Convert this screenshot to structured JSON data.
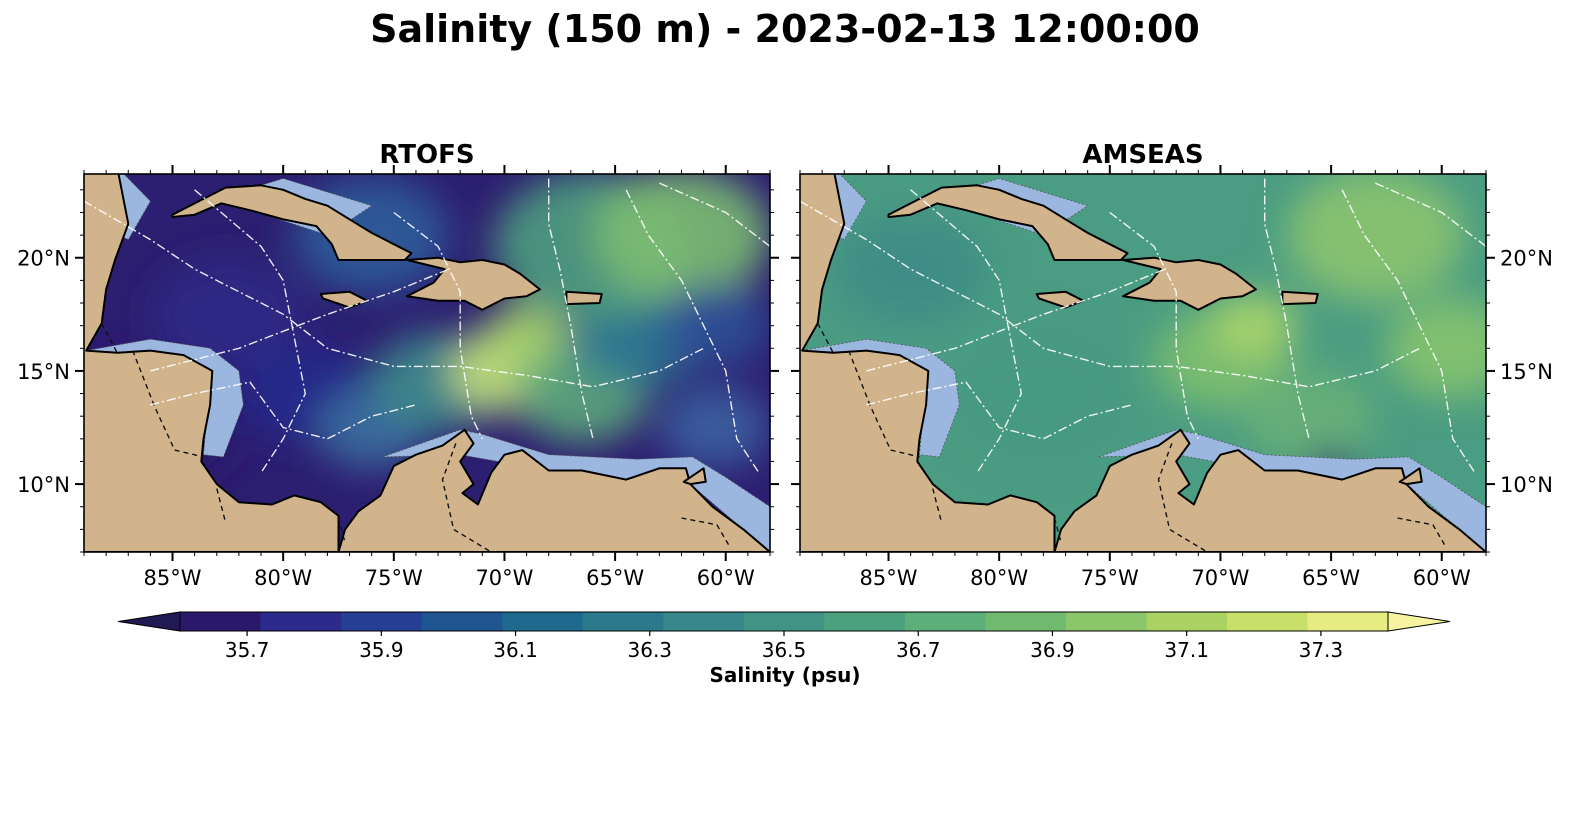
{
  "title": "Salinity (150 m) - 2023-02-13 12:00:00",
  "panels": [
    {
      "name": "RTOFS",
      "title": "RTOFS",
      "base": "#2c1e70",
      "patches": [
        {
          "lon": -86.5,
          "lat": 12.5,
          "r": 4.5,
          "color": "#2a186b"
        },
        {
          "lon": -82.5,
          "lat": 17.5,
          "r": 3.5,
          "color": "#2d2a85"
        },
        {
          "lon": -79.0,
          "lat": 14.0,
          "r": 3.0,
          "color": "#262a8c"
        },
        {
          "lon": -76.0,
          "lat": 12.5,
          "r": 2.5,
          "color": "#3b6fa0"
        },
        {
          "lon": -76.0,
          "lat": 21.0,
          "r": 3.5,
          "color": "#2f5c9a"
        },
        {
          "lon": -73.0,
          "lat": 14.5,
          "r": 3.0,
          "color": "#3d8c8c"
        },
        {
          "lon": -70.0,
          "lat": 15.0,
          "r": 2.5,
          "color": "#c8e07a"
        },
        {
          "lon": -69.0,
          "lat": 16.5,
          "r": 2.0,
          "color": "#a6d36c"
        },
        {
          "lon": -66.5,
          "lat": 14.0,
          "r": 3.0,
          "color": "#5ca87c"
        },
        {
          "lon": -64.0,
          "lat": 16.5,
          "r": 3.0,
          "color": "#2f7a92"
        },
        {
          "lon": -66.0,
          "lat": 20.5,
          "r": 4.5,
          "color": "#4e9e80"
        },
        {
          "lon": -62.0,
          "lat": 21.0,
          "r": 4.0,
          "color": "#7cbd72"
        },
        {
          "lon": -60.5,
          "lat": 17.0,
          "r": 2.5,
          "color": "#2f4f96"
        },
        {
          "lon": -60.5,
          "lat": 12.5,
          "r": 2.5,
          "color": "#3a5fa0"
        }
      ]
    },
    {
      "name": "AMSEAS",
      "title": "AMSEAS",
      "base": "#4a9c82",
      "patches": [
        {
          "lon": -84.0,
          "lat": 19.5,
          "r": 3.5,
          "color": "#3d8c86"
        },
        {
          "lon": -78.0,
          "lat": 14.0,
          "r": 4.0,
          "color": "#459a80"
        },
        {
          "lon": -70.0,
          "lat": 15.5,
          "r": 3.0,
          "color": "#7dbf6e"
        },
        {
          "lon": -68.5,
          "lat": 17.0,
          "r": 2.0,
          "color": "#a8d46a"
        },
        {
          "lon": -66.0,
          "lat": 13.0,
          "r": 3.0,
          "color": "#68b078"
        },
        {
          "lon": -63.0,
          "lat": 21.0,
          "r": 4.0,
          "color": "#8cc470"
        },
        {
          "lon": -59.5,
          "lat": 16.0,
          "r": 3.0,
          "color": "#86c36f"
        },
        {
          "lon": -65.0,
          "lat": 10.7,
          "r": 1.1,
          "color": "#2c2576"
        }
      ]
    }
  ],
  "axes": {
    "lon_range": [
      -89,
      -58
    ],
    "lat_range": [
      7,
      23.7
    ],
    "lon_ticks": [
      {
        "value": -85,
        "label": "85°W"
      },
      {
        "value": -80,
        "label": "80°W"
      },
      {
        "value": -75,
        "label": "75°W"
      },
      {
        "value": -70,
        "label": "70°W"
      },
      {
        "value": -65,
        "label": "65°W"
      },
      {
        "value": -60,
        "label": "60°W"
      }
    ],
    "lat_ticks": [
      {
        "value": 20,
        "label": "20°N"
      },
      {
        "value": 15,
        "label": "15°N"
      },
      {
        "value": 10,
        "label": "10°N"
      }
    ]
  },
  "colorbar": {
    "label": "Salinity (psu)",
    "min": 35.6,
    "max": 37.4,
    "ticks": [
      {
        "value": 35.7,
        "label": "35.7"
      },
      {
        "value": 35.9,
        "label": "35.9"
      },
      {
        "value": 36.1,
        "label": "36.1"
      },
      {
        "value": 36.3,
        "label": "36.3"
      },
      {
        "value": 36.5,
        "label": "36.5"
      },
      {
        "value": 36.7,
        "label": "36.7"
      },
      {
        "value": 36.9,
        "label": "36.9"
      },
      {
        "value": 37.1,
        "label": "37.1"
      },
      {
        "value": 37.3,
        "label": "37.3"
      }
    ],
    "colors": [
      "#2a186b",
      "#2c2a8c",
      "#263e93",
      "#1f5590",
      "#1d6a8e",
      "#2a7a8c",
      "#36888a",
      "#3f9486",
      "#4ca27f",
      "#5caf78",
      "#70ba70",
      "#8cc66a",
      "#a9d262",
      "#c8df6a",
      "#e6eb82"
    ],
    "extend_low": "#221a55",
    "extend_high": "#f6f4a0"
  },
  "colors": {
    "land": "#d2b48c",
    "shelf": "#9bb7e0",
    "coast": "#000000",
    "eez": "#ffffff",
    "border": "#111111",
    "river": "#a8bcd8"
  }
}
